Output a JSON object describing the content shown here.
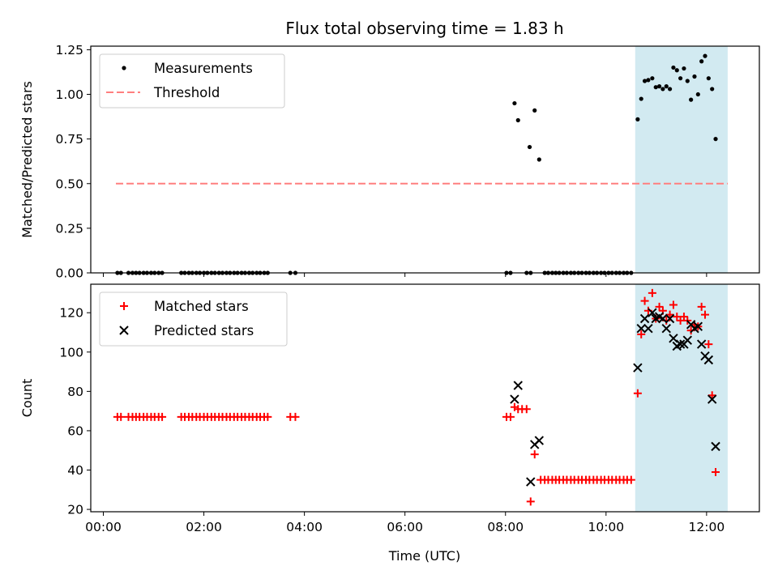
{
  "chart_data": {
    "title": "Flux total observing time = 1.83 h",
    "xlabel": "Time (UTC)",
    "xlim": [
      -0.25,
      13.05
    ],
    "x_ticks": [
      {
        "value": 0,
        "label": "00:00"
      },
      {
        "value": 2,
        "label": "02:00"
      },
      {
        "value": 4,
        "label": "04:00"
      },
      {
        "value": 6,
        "label": "06:00"
      },
      {
        "value": 8,
        "label": "08:00"
      },
      {
        "value": 10,
        "label": "10:00"
      },
      {
        "value": 12,
        "label": "12:00"
      }
    ],
    "shaded_region": {
      "x": [
        10.58,
        12.42
      ],
      "color": "#add8e6"
    },
    "panels": [
      {
        "type": "scatter",
        "ylabel": "Matched/Predicted stars",
        "ylim": [
          0,
          1.27
        ],
        "y_ticks": [
          {
            "value": 0,
            "label": "0.00"
          },
          {
            "value": 0.25,
            "label": "0.25"
          },
          {
            "value": 0.5,
            "label": "0.50"
          },
          {
            "value": 0.75,
            "label": "0.75"
          },
          {
            "value": 1.0,
            "label": "1.00"
          },
          {
            "value": 1.25,
            "label": "1.25"
          }
        ],
        "legend": {
          "placement": "upper-left",
          "entries": [
            "Measurements",
            "Threshold"
          ]
        },
        "threshold": {
          "name": "Threshold",
          "value": 0.5,
          "x": [
            0.25,
            12.42
          ],
          "color": "#ff7f7f"
        },
        "series": [
          {
            "name": "Measurements",
            "color": "#000000",
            "marker": "dot",
            "points": [
              [
                0.28,
                0
              ],
              [
                0.35,
                0
              ],
              [
                0.5,
                0
              ],
              [
                0.58,
                0
              ],
              [
                0.65,
                0
              ],
              [
                0.72,
                0
              ],
              [
                0.8,
                0
              ],
              [
                0.87,
                0
              ],
              [
                0.95,
                0
              ],
              [
                1.02,
                0
              ],
              [
                1.1,
                0
              ],
              [
                1.17,
                0
              ],
              [
                1.55,
                0
              ],
              [
                1.62,
                0
              ],
              [
                1.7,
                0
              ],
              [
                1.77,
                0
              ],
              [
                1.85,
                0
              ],
              [
                1.92,
                0
              ],
              [
                2.0,
                0
              ],
              [
                2.07,
                0
              ],
              [
                2.15,
                0
              ],
              [
                2.22,
                0
              ],
              [
                2.3,
                0
              ],
              [
                2.37,
                0
              ],
              [
                2.45,
                0
              ],
              [
                2.52,
                0
              ],
              [
                2.6,
                0
              ],
              [
                2.67,
                0
              ],
              [
                2.75,
                0
              ],
              [
                2.82,
                0
              ],
              [
                2.9,
                0
              ],
              [
                2.97,
                0
              ],
              [
                3.05,
                0
              ],
              [
                3.12,
                0
              ],
              [
                3.2,
                0
              ],
              [
                3.27,
                0
              ],
              [
                3.72,
                0
              ],
              [
                3.82,
                0
              ],
              [
                8.02,
                0
              ],
              [
                8.1,
                0
              ],
              [
                8.42,
                0
              ],
              [
                8.5,
                0
              ],
              [
                8.78,
                0
              ],
              [
                8.85,
                0
              ],
              [
                8.93,
                0
              ],
              [
                9.0,
                0
              ],
              [
                9.07,
                0
              ],
              [
                9.15,
                0
              ],
              [
                9.22,
                0
              ],
              [
                9.3,
                0
              ],
              [
                9.37,
                0
              ],
              [
                9.45,
                0
              ],
              [
                9.52,
                0
              ],
              [
                9.6,
                0
              ],
              [
                9.67,
                0
              ],
              [
                9.75,
                0
              ],
              [
                9.82,
                0
              ],
              [
                9.9,
                0
              ],
              [
                9.97,
                0
              ],
              [
                10.05,
                0
              ],
              [
                10.12,
                0
              ],
              [
                10.2,
                0
              ],
              [
                10.27,
                0
              ],
              [
                10.35,
                0
              ],
              [
                10.42,
                0
              ],
              [
                10.5,
                0
              ],
              [
                8.18,
                0.95
              ],
              [
                8.25,
                0.855
              ],
              [
                8.48,
                0.705
              ],
              [
                8.58,
                0.91
              ],
              [
                8.67,
                0.635
              ],
              [
                10.63,
                0.86
              ],
              [
                10.7,
                0.975
              ],
              [
                10.77,
                1.075
              ],
              [
                10.84,
                1.08
              ],
              [
                10.92,
                1.09
              ],
              [
                10.99,
                1.04
              ],
              [
                11.06,
                1.045
              ],
              [
                11.13,
                1.03
              ],
              [
                11.2,
                1.045
              ],
              [
                11.27,
                1.03
              ],
              [
                11.34,
                1.15
              ],
              [
                11.41,
                1.135
              ],
              [
                11.48,
                1.09
              ],
              [
                11.55,
                1.145
              ],
              [
                11.62,
                1.075
              ],
              [
                11.69,
                0.97
              ],
              [
                11.76,
                1.1
              ],
              [
                11.83,
                1.0
              ],
              [
                11.9,
                1.185
              ],
              [
                11.97,
                1.215
              ],
              [
                12.04,
                1.09
              ],
              [
                12.11,
                1.03
              ],
              [
                12.18,
                0.75
              ]
            ]
          }
        ]
      },
      {
        "type": "scatter",
        "ylabel": "Count",
        "ylim": [
          18.8,
          134.5
        ],
        "y_ticks": [
          {
            "value": 20,
            "label": "20"
          },
          {
            "value": 40,
            "label": "40"
          },
          {
            "value": 60,
            "label": "60"
          },
          {
            "value": 80,
            "label": "80"
          },
          {
            "value": 100,
            "label": "100"
          },
          {
            "value": 120,
            "label": "120"
          }
        ],
        "legend": {
          "placement": "upper-left",
          "entries": [
            "Matched stars",
            "Predicted stars"
          ]
        },
        "series": [
          {
            "name": "Matched stars",
            "color": "#ff0000",
            "marker": "plus",
            "points": [
              [
                0.28,
                67
              ],
              [
                0.35,
                67
              ],
              [
                0.5,
                67
              ],
              [
                0.58,
                67
              ],
              [
                0.65,
                67
              ],
              [
                0.72,
                67
              ],
              [
                0.8,
                67
              ],
              [
                0.87,
                67
              ],
              [
                0.95,
                67
              ],
              [
                1.02,
                67
              ],
              [
                1.1,
                67
              ],
              [
                1.17,
                67
              ],
              [
                1.55,
                67
              ],
              [
                1.62,
                67
              ],
              [
                1.7,
                67
              ],
              [
                1.77,
                67
              ],
              [
                1.85,
                67
              ],
              [
                1.92,
                67
              ],
              [
                2.0,
                67
              ],
              [
                2.07,
                67
              ],
              [
                2.15,
                67
              ],
              [
                2.22,
                67
              ],
              [
                2.3,
                67
              ],
              [
                2.37,
                67
              ],
              [
                2.45,
                67
              ],
              [
                2.52,
                67
              ],
              [
                2.6,
                67
              ],
              [
                2.67,
                67
              ],
              [
                2.75,
                67
              ],
              [
                2.82,
                67
              ],
              [
                2.9,
                67
              ],
              [
                2.97,
                67
              ],
              [
                3.05,
                67
              ],
              [
                3.12,
                67
              ],
              [
                3.2,
                67
              ],
              [
                3.27,
                67
              ],
              [
                3.72,
                67
              ],
              [
                3.82,
                67
              ],
              [
                8.02,
                67
              ],
              [
                8.1,
                67
              ],
              [
                8.18,
                72
              ],
              [
                8.25,
                71
              ],
              [
                8.33,
                71
              ],
              [
                8.42,
                71
              ],
              [
                8.5,
                24
              ],
              [
                8.58,
                48
              ],
              [
                8.7,
                35
              ],
              [
                8.78,
                35
              ],
              [
                8.85,
                35
              ],
              [
                8.93,
                35
              ],
              [
                9.0,
                35
              ],
              [
                9.07,
                35
              ],
              [
                9.15,
                35
              ],
              [
                9.22,
                35
              ],
              [
                9.3,
                35
              ],
              [
                9.37,
                35
              ],
              [
                9.45,
                35
              ],
              [
                9.52,
                35
              ],
              [
                9.6,
                35
              ],
              [
                9.67,
                35
              ],
              [
                9.75,
                35
              ],
              [
                9.82,
                35
              ],
              [
                9.9,
                35
              ],
              [
                9.97,
                35
              ],
              [
                10.05,
                35
              ],
              [
                10.12,
                35
              ],
              [
                10.2,
                35
              ],
              [
                10.27,
                35
              ],
              [
                10.35,
                35
              ],
              [
                10.42,
                35
              ],
              [
                10.5,
                35
              ],
              [
                10.63,
                79
              ],
              [
                10.7,
                109
              ],
              [
                10.77,
                126
              ],
              [
                10.84,
                121
              ],
              [
                10.92,
                130
              ],
              [
                10.99,
                117
              ],
              [
                11.06,
                123
              ],
              [
                11.13,
                121
              ],
              [
                11.2,
                116
              ],
              [
                11.27,
                119
              ],
              [
                11.34,
                124
              ],
              [
                11.41,
                118
              ],
              [
                11.48,
                116
              ],
              [
                11.55,
                118
              ],
              [
                11.62,
                116
              ],
              [
                11.69,
                111
              ],
              [
                11.76,
                114
              ],
              [
                11.83,
                113
              ],
              [
                11.9,
                123
              ],
              [
                11.97,
                119
              ],
              [
                12.04,
                104
              ],
              [
                12.11,
                78
              ],
              [
                12.18,
                39
              ]
            ]
          },
          {
            "name": "Predicted stars",
            "color": "#000000",
            "marker": "x",
            "points": [
              [
                8.18,
                76
              ],
              [
                8.25,
                83
              ],
              [
                8.5,
                34
              ],
              [
                8.58,
                53
              ],
              [
                8.67,
                55
              ],
              [
                10.63,
                92
              ],
              [
                10.7,
                112
              ],
              [
                10.77,
                117
              ],
              [
                10.84,
                112
              ],
              [
                10.92,
                120
              ],
              [
                10.99,
                117
              ],
              [
                11.06,
                118
              ],
              [
                11.13,
                117
              ],
              [
                11.2,
                112
              ],
              [
                11.27,
                117
              ],
              [
                11.34,
                107
              ],
              [
                11.41,
                103
              ],
              [
                11.48,
                104
              ],
              [
                11.55,
                104
              ],
              [
                11.62,
                106
              ],
              [
                11.69,
                114
              ],
              [
                11.76,
                112
              ],
              [
                11.83,
                113
              ],
              [
                11.9,
                104
              ],
              [
                11.97,
                98
              ],
              [
                12.04,
                96
              ],
              [
                12.11,
                76
              ],
              [
                12.18,
                52
              ]
            ]
          }
        ]
      }
    ]
  }
}
